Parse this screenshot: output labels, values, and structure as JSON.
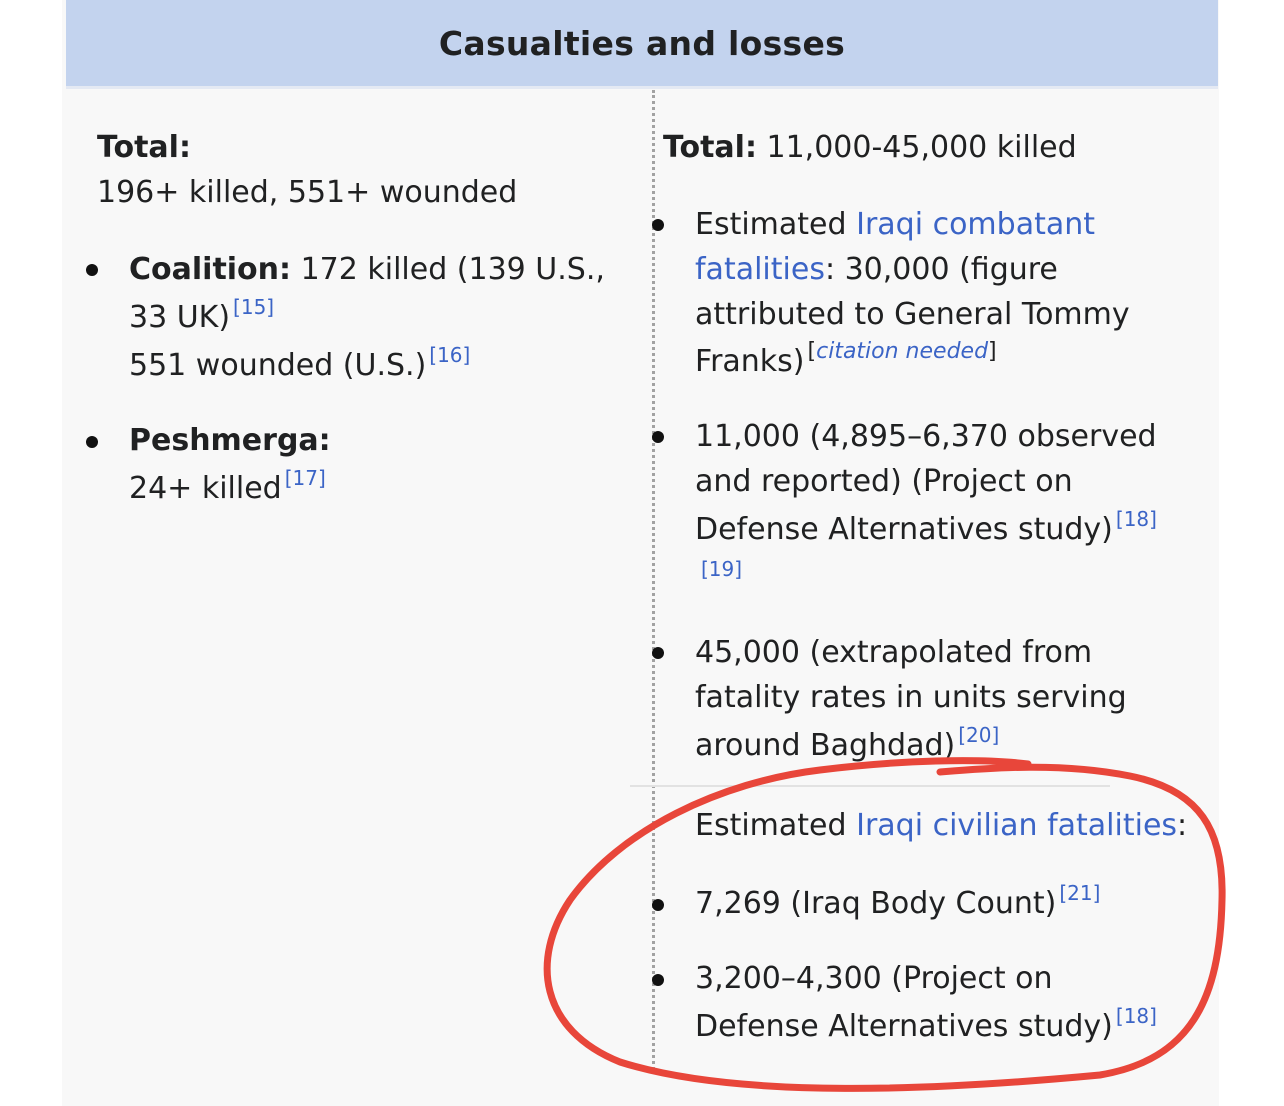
{
  "header": {
    "title": "Casualties and losses"
  },
  "left": {
    "total_label": "Total:",
    "total_value": "196+ killed, 551+ wounded",
    "coalition": {
      "label": "Coalition:",
      "line1": " 172 killed (139 U.S.,",
      "line2": "33 UK)",
      "ref1": "[15]",
      "line3": "551 wounded (U.S.)",
      "ref2": "[16]"
    },
    "peshmerga": {
      "label": "Peshmerga:",
      "line1": "24+ killed",
      "ref": "[17]"
    }
  },
  "right": {
    "total_label": "Total:",
    "total_value": " 11,000-45,000 killed",
    "item1": {
      "pre": "Estimated ",
      "link_a": "Iraqi combatant",
      "link_b": "fatalities",
      "after": ": 30,000 (figure",
      "line3": "attributed to General Tommy",
      "line4": "Franks)",
      "cn_open": "[",
      "cn_text": "citation needed",
      "cn_close": "]"
    },
    "item2": {
      "line1": "11,000 (4,895–6,370 observed",
      "line2": "and reported) (Project on",
      "line3": "Defense Alternatives study)",
      "ref1": "[18]",
      "ref2": "[19]"
    },
    "item3": {
      "line1": "45,000 (extrapolated from",
      "line2": "fatality rates in units serving",
      "line3": "around Baghdad)",
      "ref": "[20]"
    },
    "civilian": {
      "pre": "Estimated ",
      "link": "Iraqi civilian fatalities",
      "post": ":"
    },
    "item4": {
      "line1": "7,269 (Iraq Body Count)",
      "ref": "[21]"
    },
    "item5": {
      "line1": "3,200–4,300 (Project on",
      "line2": "Defense Alternatives study)",
      "ref": "[18]"
    }
  },
  "colors": {
    "header_bg": "#c3d3ee",
    "link": "#3b64c6",
    "annotation": "#e8463a"
  }
}
